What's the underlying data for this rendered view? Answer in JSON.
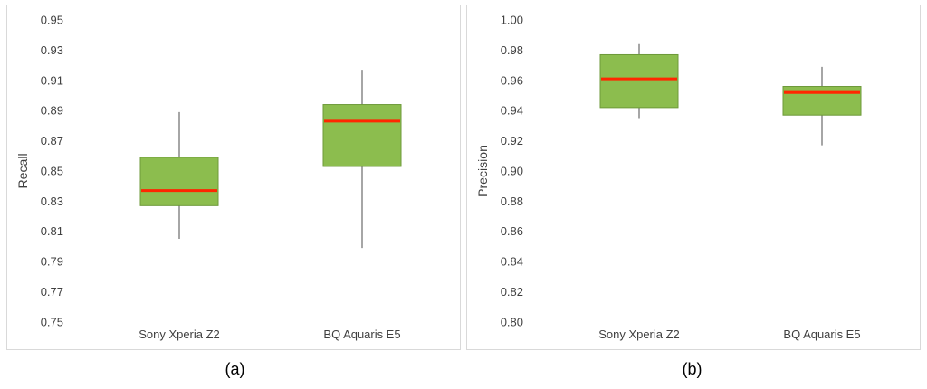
{
  "captions": [
    "(a)",
    "(b)"
  ],
  "chart_data": [
    {
      "type": "boxplot",
      "title": "",
      "ylabel": "Recall",
      "xlabel": "",
      "ylim": [
        0.75,
        0.95
      ],
      "ytick_step": 0.02,
      "ytick_decimals": 2,
      "grid": false,
      "legend": "none",
      "categories": [
        "Sony Xperia Z2",
        "BQ Aquaris E5"
      ],
      "series": [
        {
          "category": "Sony Xperia Z2",
          "whisker_low": 0.805,
          "q1": 0.827,
          "median": 0.837,
          "q3": 0.859,
          "whisker_high": 0.889
        },
        {
          "category": "BQ Aquaris E5",
          "whisker_low": 0.799,
          "q1": 0.853,
          "median": 0.883,
          "q3": 0.894,
          "whisker_high": 0.917
        }
      ],
      "style": {
        "box_fill": "#8CBD4E",
        "box_border": "#6E9A3A",
        "median_color": "#FF2600",
        "whisker_color": "#4d4d4d"
      }
    },
    {
      "type": "boxplot",
      "title": "",
      "ylabel": "Precision",
      "xlabel": "",
      "ylim": [
        0.8,
        1.0
      ],
      "ytick_step": 0.02,
      "ytick_decimals": 2,
      "grid": false,
      "legend": "none",
      "categories": [
        "Sony Xperia Z2",
        "BQ Aquaris E5"
      ],
      "series": [
        {
          "category": "Sony Xperia Z2",
          "whisker_low": 0.935,
          "q1": 0.942,
          "median": 0.961,
          "q3": 0.977,
          "whisker_high": 0.984
        },
        {
          "category": "BQ Aquaris E5",
          "whisker_low": 0.917,
          "q1": 0.937,
          "median": 0.952,
          "q3": 0.956,
          "whisker_high": 0.969
        }
      ],
      "style": {
        "box_fill": "#8CBD4E",
        "box_border": "#6E9A3A",
        "median_color": "#FF2600",
        "whisker_color": "#4d4d4d"
      }
    }
  ]
}
